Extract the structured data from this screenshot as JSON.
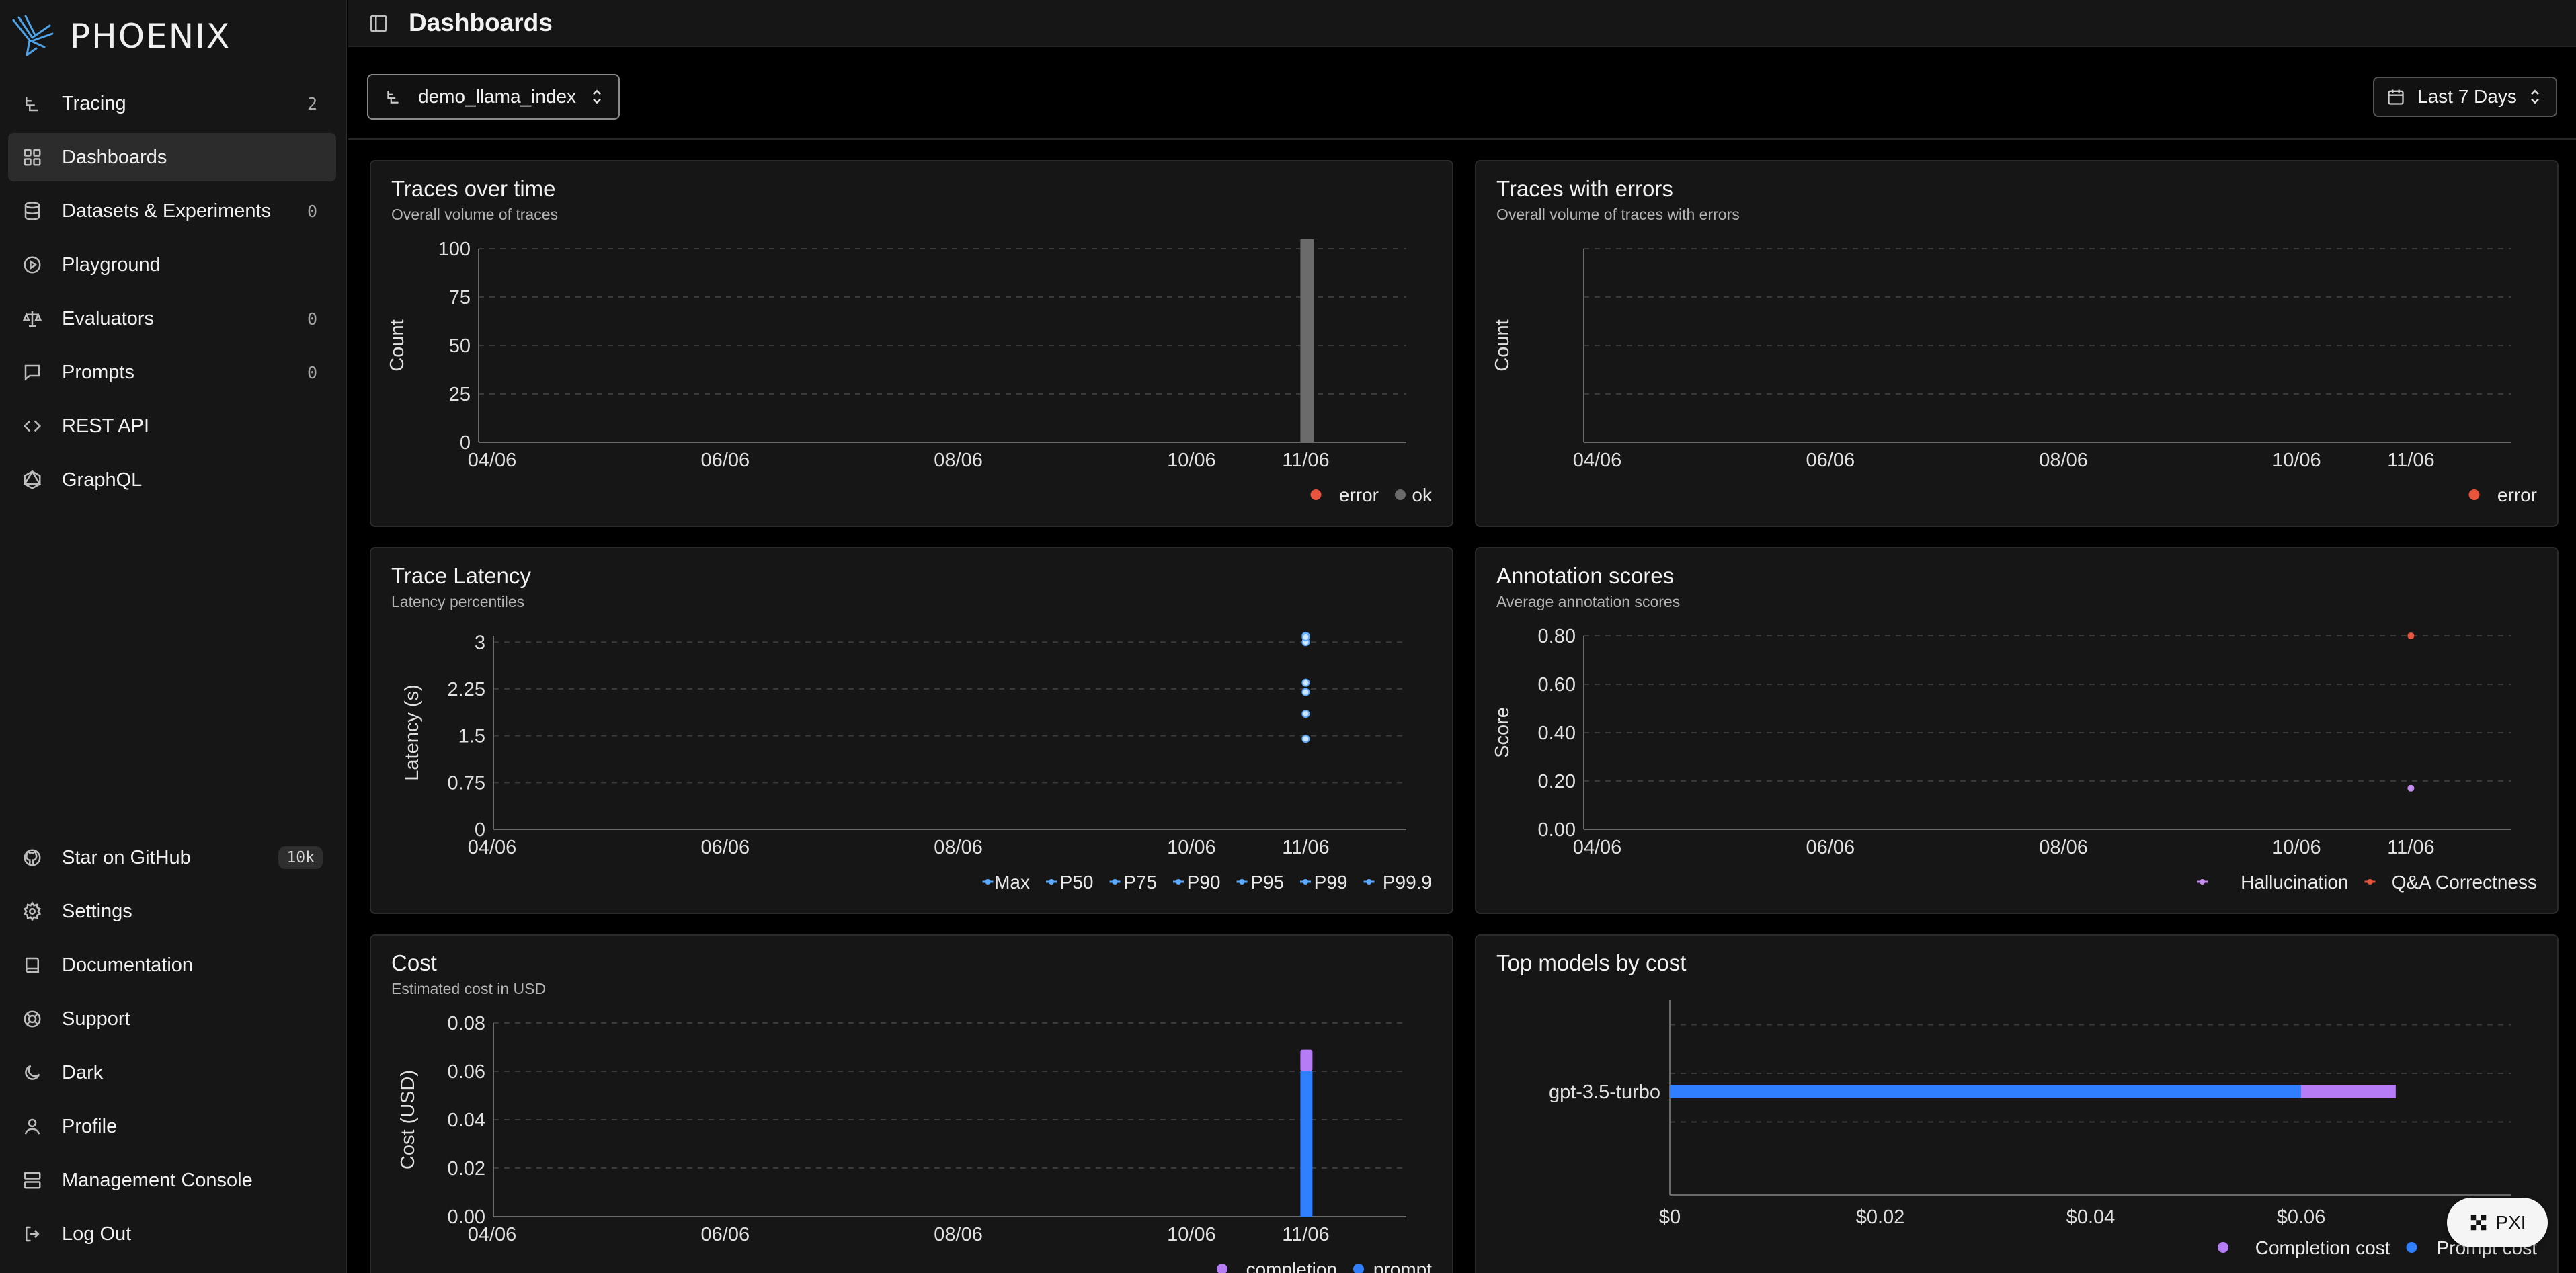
{
  "app": {
    "name": "PHOENIX"
  },
  "sidebar": {
    "items": [
      {
        "label": "Tracing",
        "count": "2"
      },
      {
        "label": "Dashboards",
        "count": ""
      },
      {
        "label": "Datasets & Experiments",
        "count": "0"
      },
      {
        "label": "Playground",
        "count": ""
      },
      {
        "label": "Evaluators",
        "count": "0"
      },
      {
        "label": "Prompts",
        "count": "0"
      },
      {
        "label": "REST API",
        "count": ""
      },
      {
        "label": "GraphQL",
        "count": ""
      }
    ],
    "bottom": [
      {
        "label": "Star on GitHub",
        "badge": "10k"
      },
      {
        "label": "Settings"
      },
      {
        "label": "Documentation"
      },
      {
        "label": "Support"
      },
      {
        "label": "Dark"
      },
      {
        "label": "Profile"
      },
      {
        "label": "Management Console"
      },
      {
        "label": "Log Out"
      }
    ]
  },
  "header": {
    "title": "Dashboards"
  },
  "toolbar": {
    "project": "demo_llama_index",
    "time_range": "Last 7 Days"
  },
  "pxi": {
    "label": "PXI"
  },
  "colors": {
    "error": "#e8553f",
    "ok": "#6b6b6b",
    "completion": "#b57cf5",
    "prompt": "#2f7fff",
    "latency_point": "#5aa9ff",
    "hallucination": "#c58cf0",
    "qa": "#e8553f"
  },
  "cards": {
    "traces": {
      "title": "Traces over time",
      "subtitle": "Overall volume of traces"
    },
    "errors": {
      "title": "Traces with errors",
      "subtitle": "Overall volume of traces with errors"
    },
    "latency": {
      "title": "Trace Latency",
      "subtitle": "Latency percentiles"
    },
    "annotations": {
      "title": "Annotation scores",
      "subtitle": "Average annotation scores"
    },
    "cost": {
      "title": "Cost",
      "subtitle": "Estimated cost in USD"
    },
    "models": {
      "title": "Top models by cost",
      "subtitle": ""
    }
  },
  "chart_data": [
    {
      "id": "traces",
      "type": "bar",
      "x_ticks": [
        "04/06",
        "06/06",
        "08/06",
        "10/06",
        "11/06"
      ],
      "ylabel": "Count",
      "ylim": [
        0,
        100
      ],
      "y_ticks": [
        "0",
        "25",
        "50",
        "75",
        "100"
      ],
      "stacked": true,
      "series": [
        {
          "name": "error",
          "values": [
            {
              "x": "11/06",
              "y": 0
            }
          ]
        },
        {
          "name": "ok",
          "values": [
            {
              "x": "11/06",
              "y": 100
            }
          ]
        }
      ],
      "legend": "bottom-right",
      "grid": true
    },
    {
      "id": "errors",
      "type": "bar",
      "x_ticks": [
        "04/06",
        "06/06",
        "08/06",
        "10/06",
        "11/06"
      ],
      "ylabel": "Count",
      "series": [
        {
          "name": "error",
          "values": []
        }
      ],
      "legend": "bottom-right",
      "grid": true
    },
    {
      "id": "latency",
      "type": "scatter",
      "x_ticks": [
        "04/06",
        "06/06",
        "08/06",
        "10/06",
        "11/06"
      ],
      "ylabel": "Latency (s)",
      "ylim": [
        0,
        3.1
      ],
      "y_ticks": [
        "0",
        "0.75",
        "1.5",
        "2.25",
        "3"
      ],
      "series": [
        {
          "name": "Max",
          "values": [
            {
              "x": "11/06",
              "y": 3.1
            }
          ]
        },
        {
          "name": "P50",
          "values": [
            {
              "x": "11/06",
              "y": 1.45
            }
          ]
        },
        {
          "name": "P75",
          "values": [
            {
              "x": "11/06",
              "y": 1.85
            }
          ]
        },
        {
          "name": "P90",
          "values": [
            {
              "x": "11/06",
              "y": 2.2
            }
          ]
        },
        {
          "name": "P95",
          "values": [
            {
              "x": "11/06",
              "y": 2.35
            }
          ]
        },
        {
          "name": "P99",
          "values": [
            {
              "x": "11/06",
              "y": 3.0
            }
          ]
        },
        {
          "name": "P99.9",
          "values": [
            {
              "x": "11/06",
              "y": 3.08
            }
          ]
        }
      ],
      "legend": "bottom-right",
      "grid": true
    },
    {
      "id": "annotations",
      "type": "scatter",
      "x_ticks": [
        "04/06",
        "06/06",
        "08/06",
        "10/06",
        "11/06"
      ],
      "ylabel": "Score",
      "ylim": [
        0,
        0.8
      ],
      "y_ticks": [
        "0.00",
        "0.20",
        "0.40",
        "0.60",
        "0.80"
      ],
      "series": [
        {
          "name": "Hallucination",
          "values": [
            {
              "x": "11/06",
              "y": 0.17
            }
          ]
        },
        {
          "name": "Q&A Correctness",
          "values": [
            {
              "x": "11/06",
              "y": 0.81
            }
          ]
        }
      ],
      "legend": "bottom-right",
      "grid": true
    },
    {
      "id": "cost",
      "type": "bar",
      "x_ticks": [
        "04/06",
        "06/06",
        "08/06",
        "10/06",
        "11/06"
      ],
      "ylabel": "Cost (USD)",
      "ylim": [
        0,
        0.08
      ],
      "y_ticks": [
        "0.00",
        "0.02",
        "0.04",
        "0.06",
        "0.08"
      ],
      "stacked": true,
      "series": [
        {
          "name": "prompt",
          "values": [
            {
              "x": "11/06",
              "y": 0.06
            }
          ]
        },
        {
          "name": "completion",
          "values": [
            {
              "x": "11/06",
              "y": 0.009
            }
          ]
        }
      ],
      "legend": "bottom-right",
      "grid": true
    },
    {
      "id": "models",
      "type": "bar",
      "orientation": "horizontal",
      "categories": [
        "gpt-3.5-turbo"
      ],
      "xlim": [
        0,
        0.08
      ],
      "x_ticks": [
        "$0",
        "$0.02",
        "$0.04",
        "$0.06"
      ],
      "stacked": true,
      "series": [
        {
          "name": "Prompt cost",
          "values": [
            0.06
          ]
        },
        {
          "name": "Completion cost",
          "values": [
            0.009
          ]
        }
      ],
      "legend": "bottom-right",
      "grid": true
    }
  ]
}
